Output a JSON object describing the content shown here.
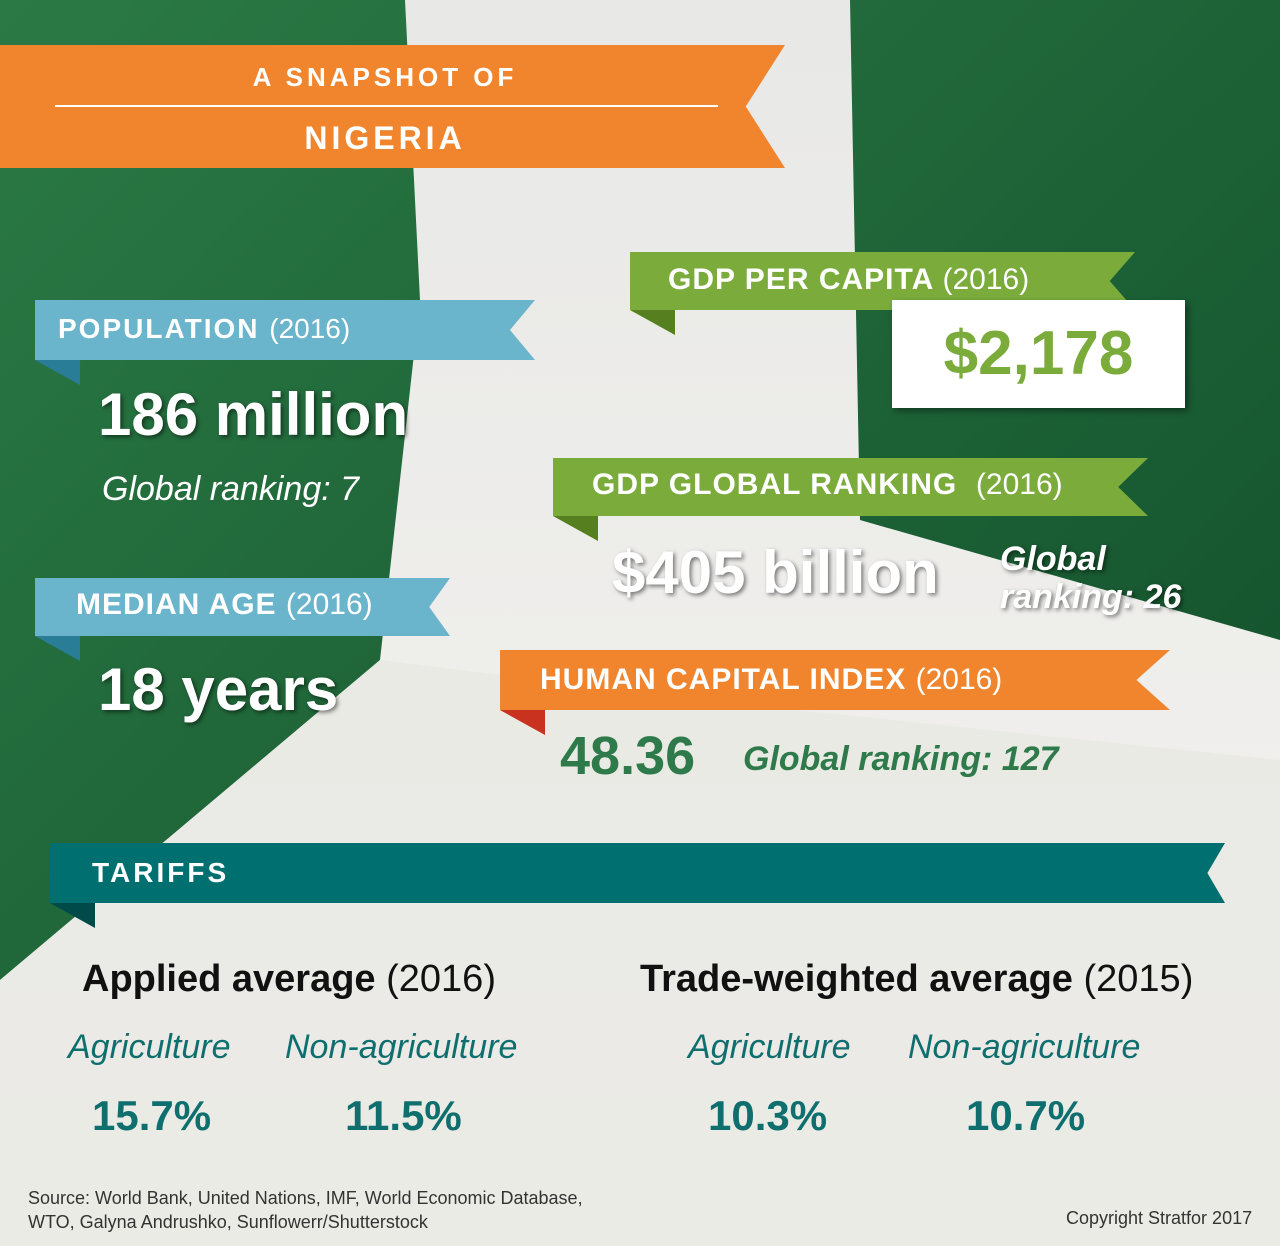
{
  "header": {
    "line1": "A SNAPSHOT OF",
    "line2": "NIGERIA"
  },
  "population": {
    "label": "POPULATION",
    "year": "(2016)",
    "value": "186 million",
    "ranking": "Global ranking: 7"
  },
  "median_age": {
    "label": "MEDIAN AGE",
    "year": "(2016)",
    "value": "18 years"
  },
  "gdp_per_capita": {
    "label": "GDP PER CAPITA",
    "year": "(2016)",
    "value": "$2,178"
  },
  "gdp_ranking": {
    "label": "GDP GLOBAL RANKING",
    "year": "(2016)",
    "value": "$405 billion",
    "ranking": "Global ranking: 26"
  },
  "human_capital": {
    "label": "HUMAN CAPITAL INDEX",
    "year": "(2016)",
    "value": "48.36",
    "ranking": "Global ranking: 127"
  },
  "tariffs": {
    "title": "TARIFFS",
    "groups": [
      {
        "title": "Applied average",
        "year": "(2016)",
        "items": [
          {
            "label": "Agriculture",
            "value": "15.7%"
          },
          {
            "label": "Non-agriculture",
            "value": "11.5%"
          }
        ]
      },
      {
        "title": "Trade-weighted average",
        "year": "(2015)",
        "items": [
          {
            "label": "Agriculture",
            "value": "10.3%"
          },
          {
            "label": "Non-agriculture",
            "value": "10.7%"
          }
        ]
      }
    ]
  },
  "footer": {
    "source": [
      "Source: World Bank, United Nations, IMF, World Economic Database,",
      "WTO, Galyna Andrushko, Sunflowerr/Shutterstock"
    ],
    "copyright": "Copyright Stratfor 2017"
  }
}
